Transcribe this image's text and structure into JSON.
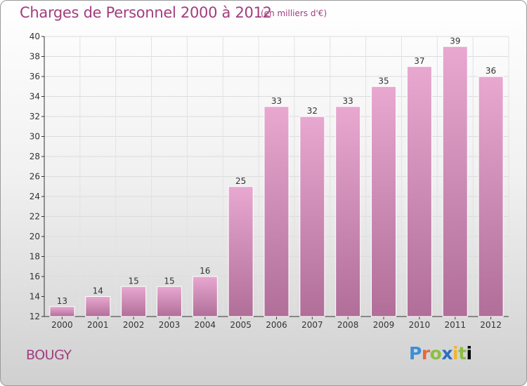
{
  "header": {
    "title": "Charges de Personnel 2000 à 2012",
    "unit": "(en milliers d'€)"
  },
  "footer": {
    "place": "BOUGY",
    "logo_letters": [
      "P",
      "r",
      "o",
      "x",
      "i",
      "t",
      "i"
    ]
  },
  "colors": {
    "accent": "#a23d7e",
    "bar_light": "#e8a8d0",
    "bar_dark": "#b06e98"
  },
  "chart_data": {
    "type": "bar",
    "categories": [
      "2000",
      "2001",
      "2002",
      "2003",
      "2004",
      "2005",
      "2006",
      "2007",
      "2008",
      "2009",
      "2010",
      "2011",
      "2012"
    ],
    "values": [
      13,
      14,
      15,
      15,
      16,
      25,
      33,
      32,
      33,
      35,
      37,
      39,
      36
    ],
    "ylim": [
      12,
      40
    ],
    "yticks": [
      12,
      14,
      16,
      18,
      20,
      22,
      24,
      26,
      28,
      30,
      32,
      34,
      36,
      38,
      40
    ],
    "grid": true
  }
}
